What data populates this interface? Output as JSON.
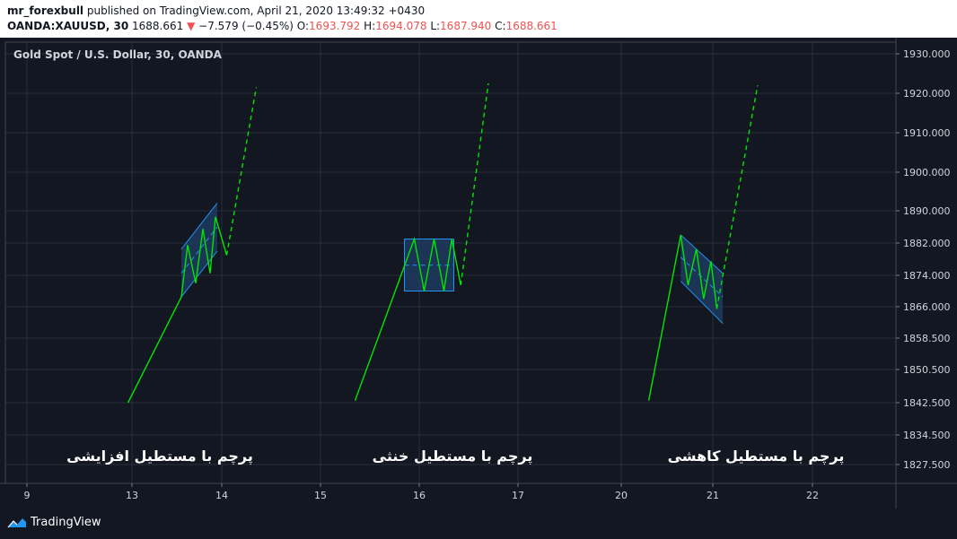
{
  "header": {
    "user": "mr_forexbull",
    "published": "published on TradingView.com, April 21, 2020 13:49:32 +0430",
    "symbol": "OANDA:XAUUSD, 30",
    "last": "1688.661",
    "change": "−7.579 (−0.45%)",
    "o_label": "O:",
    "o_val": "1693.792",
    "h_label": "H:",
    "h_val": "1694.078",
    "l_label": "L:",
    "l_val": "1687.940",
    "c_label": "C:",
    "c_val": "1688.661"
  },
  "footer": {
    "brand": "TradingView"
  },
  "colors": {
    "background": "#131722",
    "grid": "#2a2e39",
    "price_line": "#00e600",
    "channel_border": "#2196f3",
    "channel_fill": "#1e3a5f",
    "midline": "#2196f3",
    "text": "#d1d4dc"
  },
  "chart_data": {
    "type": "line",
    "title": "Gold Spot / U.S. Dollar, 30, OANDA",
    "y_ticks": [
      "1930.000",
      "1920.000",
      "1910.000",
      "1900.000",
      "1890.000",
      "1882.000",
      "1874.000",
      "1866.000",
      "1858.500",
      "1850.500",
      "1842.500",
      "1834.500",
      "1827.500"
    ],
    "x_ticks": [
      "9",
      "13",
      "14",
      "15",
      "16",
      "17",
      "20",
      "21",
      "22"
    ],
    "annotations": [
      "پرچم با مستطیل افزایشی",
      "پرچم با مستطیل خنثی",
      "پرچم با مستطیل کاهشی"
    ],
    "patterns": [
      {
        "name": "rising",
        "channel": {
          "x1": 13.55,
          "x2": 13.95,
          "upper": [
            1880.5,
            1892.0
          ],
          "lower": [
            1868.5,
            1880.0
          ],
          "mid": [
            1874.5,
            1886.0
          ]
        },
        "series_solid": [
          [
            12.85,
            1842.5
          ],
          [
            13.55,
            1868.5
          ],
          [
            13.62,
            1881.5
          ],
          [
            13.71,
            1872.0
          ],
          [
            13.79,
            1885.5
          ],
          [
            13.87,
            1874.5
          ],
          [
            13.93,
            1888.5
          ],
          [
            14.05,
            1879.0
          ]
        ],
        "series_dashed": [
          [
            14.05,
            1879.0
          ],
          [
            14.35,
            1921.5
          ]
        ]
      },
      {
        "name": "neutral",
        "channel": {
          "x1": 15.85,
          "x2": 16.35,
          "upper": [
            1883.0,
            1883.0
          ],
          "lower": [
            1870.0,
            1870.0
          ],
          "mid": [
            1876.5,
            1876.5
          ]
        },
        "series_solid": [
          [
            15.35,
            1843.0
          ],
          [
            15.95,
            1883.0
          ],
          [
            16.05,
            1870.0
          ],
          [
            16.15,
            1883.0
          ],
          [
            16.25,
            1870.0
          ],
          [
            16.33,
            1883.0
          ],
          [
            16.42,
            1871.5
          ]
        ],
        "series_dashed": [
          [
            16.42,
            1871.5
          ],
          [
            16.7,
            1922.5
          ]
        ]
      },
      {
        "name": "falling",
        "channel": {
          "x1": 20.65,
          "x2": 21.1,
          "upper": [
            1884.0,
            1874.5
          ],
          "lower": [
            1872.5,
            1862.0
          ],
          "mid": [
            1878.5,
            1868.5
          ]
        },
        "series_solid": [
          [
            20.3,
            1843.0
          ],
          [
            20.65,
            1884.0
          ],
          [
            20.73,
            1871.5
          ],
          [
            20.82,
            1880.5
          ],
          [
            20.9,
            1868.0
          ],
          [
            20.98,
            1877.5
          ],
          [
            21.04,
            1865.5
          ]
        ],
        "series_dashed": [
          [
            21.04,
            1865.5
          ],
          [
            21.45,
            1922.0
          ]
        ]
      }
    ]
  }
}
